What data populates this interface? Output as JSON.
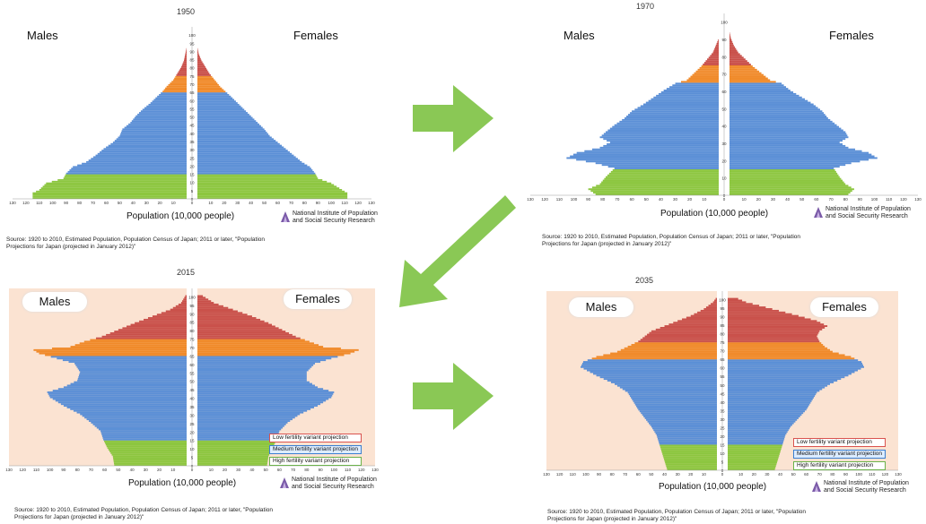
{
  "labels": {
    "males": "Males",
    "females": "Females",
    "xlabel": "Population (10,000 people)",
    "institute_line1": "National Institute of Population",
    "institute_line2": "and Social Security Research",
    "source_line1": "Source: 1920 to 2010, Estimated Population, Population Census of Japan; 2011 or later, \"Population",
    "source_line2": "Projections for Japan (projected in January 2012)\"",
    "legend_low": "Low fertility variant projection",
    "legend_medium": "Medium fertility variant projection",
    "legend_high": "High fertility variant projection"
  },
  "colors": {
    "child": "#8cc63f",
    "working": "#5b8fd6",
    "elderly65": "#f08a2a",
    "elderly75": "#c9504a",
    "projection_bg": "#fbe3d2",
    "arrow": "#7dc242",
    "low_border": "#d9534f",
    "medium_border": "#3b7fd0",
    "high_border": "#6bb24a"
  },
  "chart_data": [
    {
      "type": "population-pyramid",
      "title": "1950",
      "age_ticks": [
        0,
        5,
        10,
        15,
        20,
        25,
        30,
        35,
        40,
        45,
        50,
        55,
        60,
        65,
        70,
        75,
        80,
        85,
        90,
        95,
        100
      ],
      "x_ticks": [
        130,
        120,
        110,
        100,
        90,
        80,
        70,
        60,
        50,
        40,
        30,
        20,
        10,
        0,
        10,
        20,
        30,
        40,
        50,
        60,
        70,
        80,
        90,
        100,
        110,
        120,
        130
      ],
      "xlim": [
        0,
        130
      ],
      "males": [
        [
          0,
          115
        ],
        [
          3,
          115
        ],
        [
          5,
          110
        ],
        [
          9,
          105
        ],
        [
          12,
          92
        ],
        [
          15,
          90
        ],
        [
          19,
          85
        ],
        [
          22,
          75
        ],
        [
          26,
          68
        ],
        [
          30,
          62
        ],
        [
          34,
          55
        ],
        [
          38,
          50
        ],
        [
          42,
          48
        ],
        [
          46,
          42
        ],
        [
          50,
          38
        ],
        [
          54,
          33
        ],
        [
          58,
          27
        ],
        [
          62,
          22
        ],
        [
          65,
          18
        ],
        [
          68,
          15
        ],
        [
          72,
          10
        ],
        [
          76,
          7
        ],
        [
          80,
          4
        ],
        [
          84,
          2
        ],
        [
          88,
          1
        ],
        [
          92,
          0
        ]
      ],
      "females": [
        [
          0,
          112
        ],
        [
          3,
          112
        ],
        [
          5,
          108
        ],
        [
          9,
          100
        ],
        [
          12,
          90
        ],
        [
          15,
          88
        ],
        [
          19,
          84
        ],
        [
          22,
          78
        ],
        [
          26,
          72
        ],
        [
          30,
          66
        ],
        [
          34,
          60
        ],
        [
          38,
          54
        ],
        [
          42,
          50
        ],
        [
          46,
          45
        ],
        [
          50,
          40
        ],
        [
          54,
          35
        ],
        [
          58,
          30
        ],
        [
          62,
          25
        ],
        [
          65,
          21
        ],
        [
          68,
          17
        ],
        [
          72,
          13
        ],
        [
          76,
          9
        ],
        [
          80,
          6
        ],
        [
          84,
          3
        ],
        [
          88,
          1
        ],
        [
          92,
          0
        ]
      ]
    },
    {
      "type": "population-pyramid",
      "title": "1970",
      "age_ticks": [
        0,
        10,
        20,
        30,
        40,
        50,
        60,
        70,
        80,
        90,
        100
      ],
      "x_ticks": [
        130,
        120,
        110,
        100,
        90,
        80,
        70,
        60,
        50,
        40,
        30,
        20,
        10,
        0,
        10,
        20,
        30,
        40,
        50,
        60,
        70,
        80,
        90,
        100,
        110,
        120,
        130
      ],
      "xlim": [
        0,
        130
      ],
      "males": [
        [
          0,
          85
        ],
        [
          3,
          90
        ],
        [
          6,
          82
        ],
        [
          10,
          78
        ],
        [
          15,
          72
        ],
        [
          18,
          85
        ],
        [
          21,
          105
        ],
        [
          24,
          98
        ],
        [
          27,
          82
        ],
        [
          30,
          75
        ],
        [
          33,
          82
        ],
        [
          36,
          78
        ],
        [
          40,
          72
        ],
        [
          44,
          65
        ],
        [
          48,
          60
        ],
        [
          52,
          52
        ],
        [
          56,
          45
        ],
        [
          60,
          38
        ],
        [
          64,
          30
        ],
        [
          66,
          22
        ],
        [
          70,
          17
        ],
        [
          74,
          12
        ],
        [
          78,
          8
        ],
        [
          82,
          4
        ],
        [
          86,
          2
        ],
        [
          90,
          0
        ]
      ],
      "females": [
        [
          0,
          82
        ],
        [
          3,
          86
        ],
        [
          6,
          80
        ],
        [
          10,
          76
        ],
        [
          15,
          72
        ],
        [
          18,
          84
        ],
        [
          21,
          102
        ],
        [
          24,
          96
        ],
        [
          27,
          82
        ],
        [
          30,
          76
        ],
        [
          33,
          82
        ],
        [
          36,
          80
        ],
        [
          40,
          74
        ],
        [
          44,
          68
        ],
        [
          48,
          64
        ],
        [
          52,
          58
        ],
        [
          56,
          50
        ],
        [
          60,
          42
        ],
        [
          64,
          36
        ],
        [
          66,
          28
        ],
        [
          70,
          22
        ],
        [
          74,
          16
        ],
        [
          78,
          11
        ],
        [
          82,
          6
        ],
        [
          86,
          3
        ],
        [
          90,
          1
        ],
        [
          94,
          0
        ]
      ]
    },
    {
      "type": "population-pyramid",
      "title": "2015",
      "age_ticks": [
        0,
        5,
        10,
        15,
        20,
        25,
        30,
        35,
        40,
        45,
        50,
        55,
        60,
        65,
        70,
        75,
        80,
        85,
        90,
        95,
        100
      ],
      "x_ticks": [
        130,
        120,
        110,
        100,
        90,
        80,
        70,
        60,
        50,
        40,
        30,
        20,
        10,
        0,
        10,
        20,
        30,
        40,
        50,
        60,
        70,
        80,
        90,
        100,
        110,
        120,
        130
      ],
      "xlim": [
        0,
        130
      ],
      "males": [
        [
          0,
          53
        ],
        [
          5,
          54
        ],
        [
          10,
          58
        ],
        [
          15,
          61
        ],
        [
          20,
          63
        ],
        [
          25,
          70
        ],
        [
          30,
          78
        ],
        [
          35,
          90
        ],
        [
          40,
          100
        ],
        [
          43,
          102
        ],
        [
          46,
          90
        ],
        [
          50,
          80
        ],
        [
          55,
          78
        ],
        [
          60,
          82
        ],
        [
          63,
          95
        ],
        [
          66,
          108
        ],
        [
          68,
          112
        ],
        [
          70,
          85
        ],
        [
          73,
          75
        ],
        [
          76,
          62
        ],
        [
          80,
          50
        ],
        [
          84,
          38
        ],
        [
          88,
          25
        ],
        [
          92,
          12
        ],
        [
          96,
          4
        ],
        [
          100,
          1
        ]
      ],
      "females": [
        [
          0,
          51
        ],
        [
          5,
          52
        ],
        [
          10,
          55
        ],
        [
          15,
          58
        ],
        [
          20,
          60
        ],
        [
          25,
          66
        ],
        [
          30,
          75
        ],
        [
          35,
          88
        ],
        [
          40,
          98
        ],
        [
          43,
          100
        ],
        [
          46,
          88
        ],
        [
          50,
          80
        ],
        [
          55,
          80
        ],
        [
          60,
          86
        ],
        [
          63,
          98
        ],
        [
          66,
          112
        ],
        [
          68,
          118
        ],
        [
          70,
          92
        ],
        [
          73,
          82
        ],
        [
          76,
          72
        ],
        [
          80,
          62
        ],
        [
          84,
          52
        ],
        [
          88,
          40
        ],
        [
          92,
          26
        ],
        [
          96,
          12
        ],
        [
          100,
          4
        ]
      ]
    },
    {
      "type": "population-pyramid",
      "title": "2035",
      "age_ticks": [
        0,
        5,
        10,
        15,
        20,
        25,
        30,
        35,
        40,
        45,
        50,
        55,
        60,
        65,
        70,
        75,
        80,
        85,
        90,
        95,
        100
      ],
      "x_ticks": [
        130,
        120,
        110,
        100,
        90,
        80,
        70,
        60,
        50,
        40,
        30,
        20,
        10,
        0,
        10,
        20,
        30,
        40,
        50,
        60,
        70,
        80,
        90,
        100,
        110,
        120,
        130
      ],
      "xlim": [
        0,
        130
      ],
      "males": [
        [
          0,
          38
        ],
        [
          5,
          40
        ],
        [
          10,
          42
        ],
        [
          15,
          44
        ],
        [
          20,
          46
        ],
        [
          25,
          50
        ],
        [
          30,
          55
        ],
        [
          35,
          60
        ],
        [
          40,
          64
        ],
        [
          45,
          68
        ],
        [
          50,
          78
        ],
        [
          55,
          92
        ],
        [
          60,
          104
        ],
        [
          63,
          102
        ],
        [
          66,
          92
        ],
        [
          69,
          76
        ],
        [
          72,
          68
        ],
        [
          75,
          60
        ],
        [
          78,
          55
        ],
        [
          81,
          50
        ],
        [
          84,
          40
        ],
        [
          87,
          30
        ],
        [
          90,
          20
        ],
        [
          94,
          10
        ],
        [
          98,
          3
        ],
        [
          100,
          1
        ]
      ],
      "females": [
        [
          0,
          36
        ],
        [
          5,
          38
        ],
        [
          10,
          40
        ],
        [
          15,
          42
        ],
        [
          20,
          44
        ],
        [
          25,
          48
        ],
        [
          30,
          54
        ],
        [
          35,
          60
        ],
        [
          40,
          64
        ],
        [
          45,
          68
        ],
        [
          50,
          78
        ],
        [
          55,
          92
        ],
        [
          60,
          104
        ],
        [
          63,
          102
        ],
        [
          66,
          94
        ],
        [
          69,
          80
        ],
        [
          72,
          74
        ],
        [
          75,
          70
        ],
        [
          78,
          68
        ],
        [
          81,
          70
        ],
        [
          84,
          76
        ],
        [
          87,
          68
        ],
        [
          90,
          54
        ],
        [
          94,
          34
        ],
        [
          98,
          14
        ],
        [
          100,
          8
        ]
      ]
    }
  ]
}
